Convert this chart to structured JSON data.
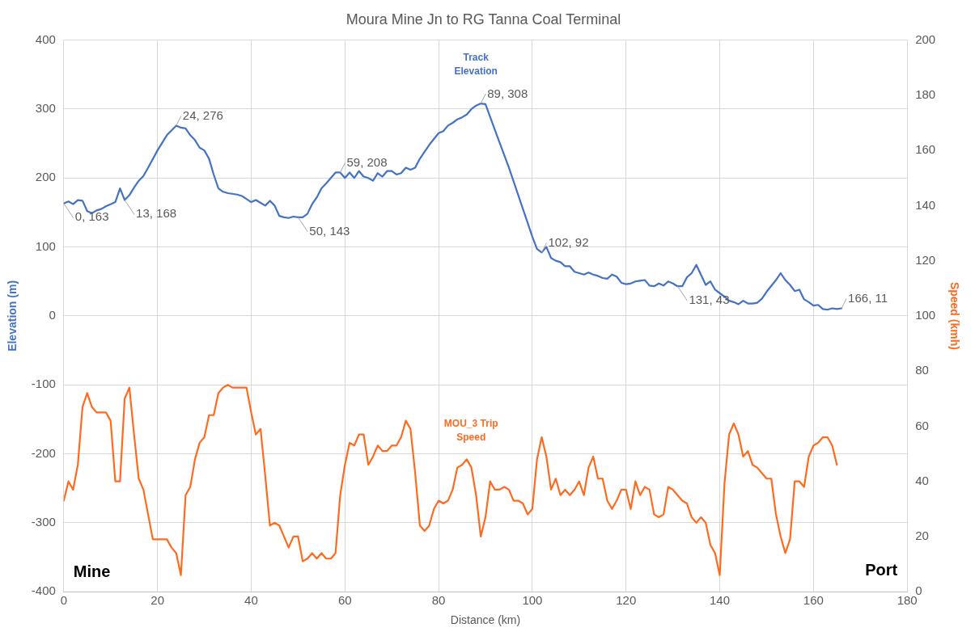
{
  "chart_data": {
    "type": "line",
    "title": "Moura Mine Jn to RG Tanna Coal Terminal",
    "xlabel": "Distance (km)",
    "ylabel": "Elevation (m)",
    "y2label": "Speed (kmh)",
    "xlim": [
      0,
      180
    ],
    "xticks": [
      0,
      20,
      40,
      60,
      80,
      100,
      120,
      140,
      160,
      180
    ],
    "ylim": [
      -400,
      400
    ],
    "yticks": [
      -400,
      -300,
      -200,
      -100,
      0,
      100,
      200,
      300,
      400
    ],
    "y2lim": [
      0,
      200
    ],
    "y2ticks": [
      0,
      20,
      40,
      60,
      80,
      100,
      120,
      140,
      160,
      180,
      200
    ],
    "grid": true,
    "legend": false,
    "series": [
      {
        "name": "Track Elevation",
        "color": "#4472c4",
        "x": [
          0,
          1,
          2,
          3,
          4,
          5,
          6,
          7,
          8,
          9,
          10,
          11,
          12,
          13,
          14,
          15,
          16,
          17,
          18,
          20,
          22,
          24,
          25,
          26,
          27,
          28,
          29,
          30,
          31,
          32,
          33,
          34,
          35,
          37,
          38,
          40,
          41,
          42,
          43,
          44,
          45,
          46,
          47,
          48,
          49,
          50,
          51,
          52,
          53,
          54,
          55,
          56,
          57,
          58,
          59,
          60,
          61,
          62,
          63,
          64,
          65,
          66,
          67,
          68,
          69,
          70,
          71,
          72,
          73,
          74,
          75,
          76,
          78,
          80,
          81,
          82,
          83,
          84,
          85,
          86,
          87,
          88,
          89,
          90,
          92,
          95,
          98,
          100,
          101,
          102,
          103,
          104,
          105,
          106,
          107,
          108,
          109,
          110,
          111,
          112,
          113,
          114,
          115,
          116,
          117,
          118,
          119,
          120,
          121,
          122,
          123,
          124,
          125,
          126,
          127,
          128,
          129,
          130,
          131,
          132,
          133,
          134,
          135,
          137,
          138,
          139,
          140,
          141,
          142,
          143,
          144,
          145,
          146,
          147,
          148,
          149,
          150,
          152,
          153,
          154,
          155,
          156,
          157,
          158,
          159,
          160,
          161,
          162,
          163,
          164,
          165,
          166
        ],
        "values": [
          163,
          166,
          162,
          168,
          167,
          152,
          149,
          153,
          155,
          159,
          162,
          165,
          185,
          168,
          175,
          186,
          196,
          203,
          215,
          240,
          262,
          276,
          273,
          272,
          262,
          255,
          244,
          240,
          228,
          205,
          185,
          180,
          178,
          176,
          174,
          165,
          168,
          164,
          160,
          167,
          160,
          145,
          143,
          142,
          144,
          143,
          143,
          148,
          162,
          172,
          185,
          192,
          200,
          208,
          208,
          200,
          208,
          200,
          210,
          202,
          200,
          196,
          207,
          202,
          210,
          210,
          205,
          207,
          215,
          212,
          215,
          228,
          248,
          265,
          268,
          276,
          280,
          285,
          288,
          292,
          300,
          305,
          308,
          307,
          270,
          215,
          155,
          115,
          97,
          92,
          100,
          84,
          80,
          78,
          72,
          72,
          64,
          62,
          60,
          63,
          60,
          58,
          55,
          54,
          60,
          57,
          48,
          46,
          47,
          50,
          51,
          52,
          44,
          43,
          47,
          44,
          50,
          47,
          43,
          43,
          56,
          62,
          74,
          45,
          50,
          38,
          33,
          28,
          22,
          20,
          17,
          22,
          18,
          18,
          19,
          25,
          35,
          52,
          62,
          52,
          45,
          36,
          38,
          24,
          20,
          15,
          16,
          10,
          9,
          11,
          10,
          11
        ]
      },
      {
        "name": "MOU_3 Trip Speed",
        "color": "#ff6a1f",
        "axis": "y2",
        "x": [
          0,
          1,
          2,
          3,
          4,
          5,
          6,
          7,
          8,
          9,
          10,
          11,
          12,
          13,
          14,
          15,
          16,
          17,
          18,
          19,
          20,
          21,
          22,
          23,
          24,
          25,
          26,
          27,
          28,
          29,
          30,
          31,
          32,
          33,
          34,
          35,
          36,
          37,
          38,
          39,
          40,
          41,
          42,
          43,
          44,
          45,
          46,
          47,
          48,
          49,
          50,
          51,
          52,
          53,
          54,
          55,
          56,
          57,
          58,
          59,
          60,
          61,
          62,
          63,
          64,
          65,
          66,
          67,
          68,
          69,
          70,
          71,
          72,
          73,
          74,
          75,
          76,
          77,
          78,
          79,
          80,
          81,
          82,
          83,
          84,
          85,
          86,
          87,
          88,
          89,
          90,
          91,
          92,
          93,
          94,
          95,
          96,
          97,
          98,
          99,
          100,
          101,
          102,
          103,
          104,
          105,
          106,
          107,
          108,
          109,
          110,
          111,
          112,
          113,
          114,
          115,
          116,
          117,
          118,
          119,
          120,
          121,
          122,
          123,
          124,
          125,
          126,
          127,
          128,
          129,
          130,
          131,
          132,
          133,
          134,
          135,
          136,
          137,
          138,
          139,
          140,
          141,
          142,
          143,
          144,
          145,
          146,
          147,
          148,
          149,
          150,
          151,
          152,
          153,
          154,
          155,
          156,
          157,
          158,
          159,
          160,
          161,
          162,
          163,
          164,
          165
        ],
        "values": [
          33,
          40,
          37,
          46,
          67,
          72,
          67,
          65,
          65,
          65,
          62,
          40,
          40,
          70,
          74,
          57,
          41,
          37,
          28,
          19,
          19,
          19,
          19,
          16,
          14,
          6,
          35,
          38,
          48,
          54,
          56,
          64,
          64,
          72,
          74,
          75,
          74,
          74,
          74,
          74,
          65,
          57,
          59,
          42,
          24,
          25,
          24,
          20,
          16,
          20,
          20,
          11,
          12,
          14,
          12,
          14,
          12,
          12,
          14,
          35,
          46,
          54,
          53,
          57,
          57,
          46,
          49,
          53,
          51,
          51,
          53,
          53,
          56,
          62,
          59,
          43,
          24,
          22,
          24,
          30,
          33,
          32,
          33,
          37,
          45,
          46,
          48,
          45,
          35,
          20,
          27,
          40,
          37,
          37,
          38,
          37,
          33,
          33,
          32,
          28,
          30,
          48,
          56,
          49,
          37,
          41,
          35,
          37,
          35,
          37,
          40,
          35,
          45,
          49,
          41,
          41,
          33,
          30,
          33,
          37,
          37,
          30,
          40,
          35,
          38,
          37,
          28,
          27,
          28,
          38,
          37,
          35,
          33,
          32,
          27,
          25,
          27,
          25,
          17,
          14,
          6,
          39,
          57,
          61,
          57,
          49,
          51,
          46,
          45,
          43,
          41,
          41,
          28,
          20,
          14,
          19,
          40,
          40,
          38,
          49,
          53,
          54,
          56,
          56,
          53,
          46
        ]
      }
    ],
    "annotations": [
      {
        "text": "0, 163",
        "x": 0,
        "y": 163
      },
      {
        "text": "13, 168",
        "x": 13,
        "y": 168
      },
      {
        "text": "24, 276",
        "x": 24,
        "y": 276
      },
      {
        "text": "50, 143",
        "x": 50,
        "y": 143
      },
      {
        "text": "59, 208",
        "x": 59,
        "y": 208
      },
      {
        "text": "89, 308",
        "x": 89,
        "y": 308
      },
      {
        "text": "102, 92",
        "x": 102,
        "y": 92
      },
      {
        "text": "131, 43",
        "x": 131,
        "y": 43
      },
      {
        "text": "166, 11",
        "x": 166,
        "y": 11
      },
      "Mine",
      "Port"
    ]
  }
}
